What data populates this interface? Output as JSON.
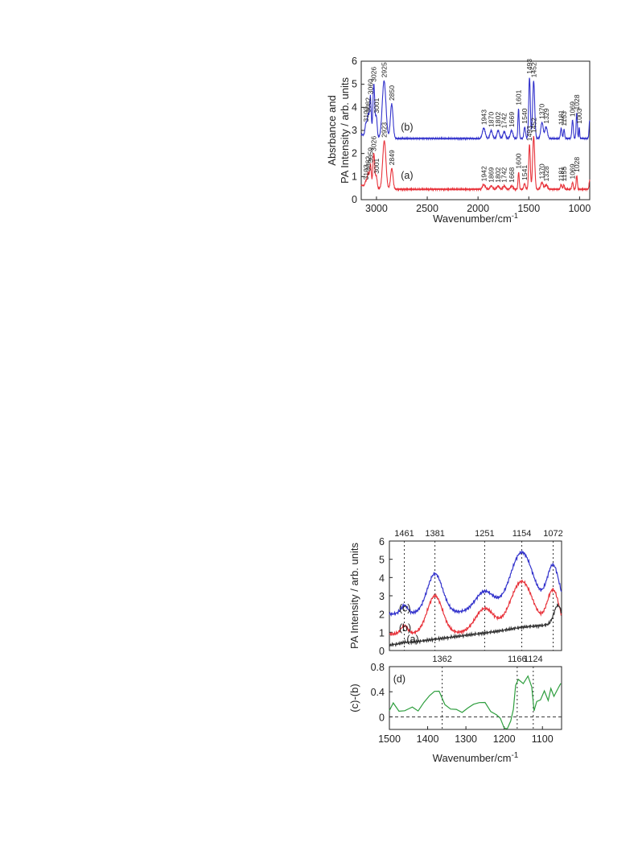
{
  "colors": {
    "blue": "#3333cc",
    "red": "#e8323a",
    "black": "#333333",
    "green": "#2e9e3e"
  },
  "chart_data": [
    {
      "type": "line",
      "xlabel": "Wavenumber/cm",
      "xlabel_sup": "-1",
      "ylabel_line1": "Absrbance and",
      "ylabel_line2": "PA Intensity / arb. units",
      "xlim": [
        3150,
        900
      ],
      "ylim": [
        0,
        6
      ],
      "xticks": [
        "3000",
        "2500",
        "2000",
        "1500",
        "1000"
      ],
      "yticks": [
        "0",
        "1",
        "2",
        "3",
        "4",
        "5",
        "6"
      ],
      "series": [
        {
          "name": "(b)",
          "color": "#3333cc",
          "baseline": 2.65,
          "tail": {
            "from": 2.82,
            "to": 2.55
          },
          "peaks": [
            [
              3103,
              0.55,
              9
            ],
            [
              3082,
              0.9,
              8
            ],
            [
              3060,
              1.75,
              8
            ],
            [
              3026,
              2.3,
              9
            ],
            [
              3001,
              0.9,
              8
            ],
            [
              2925,
              2.5,
              18
            ],
            [
              2850,
              1.5,
              13
            ],
            [
              1943,
              0.45,
              14
            ],
            [
              1870,
              0.35,
              12
            ],
            [
              1802,
              0.35,
              12
            ],
            [
              1742,
              0.3,
              12
            ],
            [
              1669,
              0.35,
              12
            ],
            [
              1601,
              1.3,
              6
            ],
            [
              1540,
              0.5,
              8
            ],
            [
              1493,
              2.65,
              8
            ],
            [
              1452,
              2.5,
              10
            ],
            [
              1370,
              0.7,
              12
            ],
            [
              1329,
              0.5,
              12
            ],
            [
              1181,
              0.45,
              7
            ],
            [
              1153,
              0.4,
              6
            ],
            [
              1069,
              0.8,
              7
            ],
            [
              1028,
              1.1,
              6
            ],
            [
              1003,
              0.5,
              4
            ],
            [
              900,
              0.8,
              6
            ]
          ],
          "labels": [
            "3103",
            "3082",
            "3060",
            "3026",
            "3001",
            "2925",
            "2850",
            "1943",
            "1870",
            "1802",
            "1742",
            "1669",
            "1601",
            "1540",
            "1493",
            "1452",
            "1370",
            "1329",
            "1181",
            "1153",
            "1069",
            "1028",
            "1003"
          ]
        },
        {
          "name": "(a)",
          "color": "#e8323a",
          "baseline": 0.45,
          "tail": {
            "from": 0.62,
            "to": 0.4
          },
          "peaks": [
            [
              3103,
              0.25,
              9
            ],
            [
              3082,
              0.6,
              8
            ],
            [
              3059,
              1.0,
              8
            ],
            [
              3026,
              1.5,
              9
            ],
            [
              3001,
              0.5,
              8
            ],
            [
              2923,
              2.1,
              16
            ],
            [
              2849,
              0.9,
              12
            ],
            [
              1942,
              0.2,
              14
            ],
            [
              1869,
              0.15,
              12
            ],
            [
              1802,
              0.15,
              12
            ],
            [
              1742,
              0.15,
              12
            ],
            [
              1668,
              0.15,
              12
            ],
            [
              1600,
              0.75,
              6
            ],
            [
              1541,
              0.25,
              8
            ],
            [
              1493,
              1.95,
              8
            ],
            [
              1452,
              2.3,
              10
            ],
            [
              1370,
              0.3,
              12
            ],
            [
              1328,
              0.2,
              12
            ],
            [
              1181,
              0.2,
              7
            ],
            [
              1155,
              0.2,
              6
            ],
            [
              1069,
              0.3,
              7
            ],
            [
              1028,
              0.6,
              6
            ],
            [
              900,
              0.4,
              6
            ]
          ],
          "labels": [
            "3103",
            "3082",
            "3059",
            "3026",
            "3001",
            "2923",
            "2849",
            "1942",
            "1869",
            "1802",
            "1742",
            "1668",
            "1600",
            "1541",
            "1493",
            "1452",
            "1370",
            "1328",
            "1181",
            "1155",
            "1069",
            "1028"
          ]
        }
      ]
    },
    {
      "type": "line",
      "ylabel": "PA Intensity / arb. units",
      "xlim": [
        1500,
        1050
      ],
      "ylim": [
        0,
        6
      ],
      "yticks": [
        "0",
        "1",
        "2",
        "3",
        "4",
        "5",
        "6"
      ],
      "top_labels": [
        "1461",
        "1381",
        "1251",
        "1154",
        "1072"
      ],
      "dotted_lines": [
        1461,
        1381,
        1251,
        1154,
        1072
      ],
      "series": [
        {
          "name": "(c)",
          "color": "#3333cc",
          "base": 2.0,
          "slope": 0.8,
          "peaks": [
            [
              1461,
              0.45,
              9
            ],
            [
              1381,
              2.15,
              20
            ],
            [
              1251,
              1.1,
              24
            ],
            [
              1154,
              3.2,
              30
            ],
            [
              1072,
              2.4,
              16
            ]
          ]
        },
        {
          "name": "(b)",
          "color": "#e8323a",
          "base": 0.9,
          "slope": 0.6,
          "peaks": [
            [
              1461,
              0.45,
              9
            ],
            [
              1381,
              2.05,
              20
            ],
            [
              1251,
              1.3,
              24
            ],
            [
              1154,
              2.75,
              30
            ],
            [
              1072,
              2.2,
              16
            ]
          ]
        },
        {
          "name": "(a)",
          "color": "#333333",
          "base": 0.3,
          "slope": 1.0,
          "peaks": [
            [
              1461,
              0.05,
              8
            ],
            [
              1154,
              0.05,
              30
            ],
            [
              1060,
              1.0,
              10
            ]
          ]
        }
      ]
    },
    {
      "type": "line",
      "xlabel": "Wavenumber/cm",
      "xlabel_sup": "-1",
      "ylabel": "(c)-(b)",
      "xlim": [
        1500,
        1050
      ],
      "ylim": [
        -0.2,
        0.8
      ],
      "xticks": [
        "1500",
        "1400",
        "1300",
        "1200",
        "1100"
      ],
      "yticks": [
        "0",
        "0.4",
        "0.8"
      ],
      "top_labels": [
        "1362",
        "1166",
        "1124"
      ],
      "dotted_lines": [
        1362,
        1166,
        1124
      ],
      "series": [
        {
          "name": "(d)",
          "color": "#2e9e3e",
          "points": [
            [
              1500,
              0.1
            ],
            [
              1490,
              0.2
            ],
            [
              1475,
              0.12
            ],
            [
              1460,
              0.08
            ],
            [
              1440,
              0.15
            ],
            [
              1425,
              0.12
            ],
            [
              1410,
              0.2
            ],
            [
              1395,
              0.35
            ],
            [
              1382,
              0.42
            ],
            [
              1370,
              0.38
            ],
            [
              1355,
              0.22
            ],
            [
              1340,
              0.12
            ],
            [
              1325,
              0.1
            ],
            [
              1310,
              0.1
            ],
            [
              1295,
              0.12
            ],
            [
              1280,
              0.2
            ],
            [
              1265,
              0.25
            ],
            [
              1250,
              0.2
            ],
            [
              1235,
              0.1
            ],
            [
              1220,
              0.04
            ],
            [
              1210,
              -0.05
            ],
            [
              1200,
              -0.15
            ],
            [
              1192,
              -0.2
            ],
            [
              1183,
              -0.08
            ],
            [
              1176,
              0.15
            ],
            [
              1170,
              0.48
            ],
            [
              1163,
              0.6
            ],
            [
              1150,
              0.55
            ],
            [
              1138,
              0.62
            ],
            [
              1128,
              0.5
            ],
            [
              1122,
              0.1
            ],
            [
              1115,
              0.22
            ],
            [
              1105,
              0.3
            ],
            [
              1095,
              0.4
            ],
            [
              1085,
              0.25
            ],
            [
              1078,
              0.48
            ],
            [
              1070,
              0.3
            ],
            [
              1060,
              0.45
            ],
            [
              1052,
              0.55
            ]
          ]
        }
      ]
    }
  ]
}
